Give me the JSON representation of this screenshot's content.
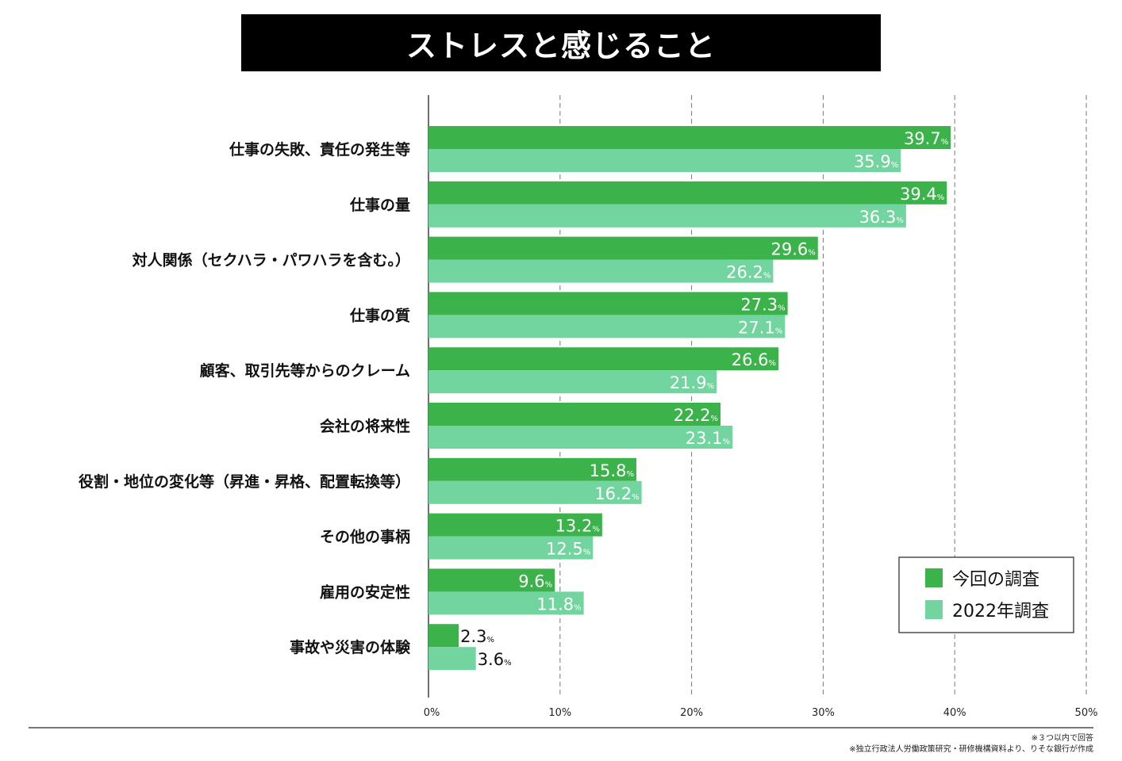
{
  "title": "ストレスと感じること",
  "footnotes": [
    "※３つ以内で回答",
    "※独立行政法人労働政策研究・研修機構資料より、りそな銀行が作成"
  ],
  "chart_data": {
    "type": "bar",
    "orientation": "horizontal",
    "title": "ストレスと感じること",
    "categories": [
      "仕事の失敗、責任の発生等",
      "仕事の量",
      "対人関係（セクハラ・パワハラを含む。）",
      "仕事の質",
      "顧客、取引先等からのクレーム",
      "会社の将来性",
      "役割・地位の変化等（昇進・昇格、配置転換等）",
      "その他の事柄",
      "雇用の安定性",
      "事故や災害の体験"
    ],
    "series": [
      {
        "name": "今回の調査",
        "color": "#3bb34a",
        "values": [
          39.7,
          39.4,
          29.6,
          27.3,
          26.6,
          22.2,
          15.8,
          13.2,
          9.6,
          2.3
        ]
      },
      {
        "name": "2022年調査",
        "color": "#72d49e",
        "values": [
          35.9,
          36.3,
          26.2,
          27.1,
          21.9,
          23.1,
          16.2,
          12.5,
          11.8,
          3.6
        ]
      }
    ],
    "unit": "%",
    "xlim": [
      0,
      50
    ],
    "xticks": [
      "0%",
      "10%",
      "20%",
      "30%",
      "40%",
      "50%"
    ],
    "grid": "vertical dashed",
    "legend": "bottom-right"
  }
}
